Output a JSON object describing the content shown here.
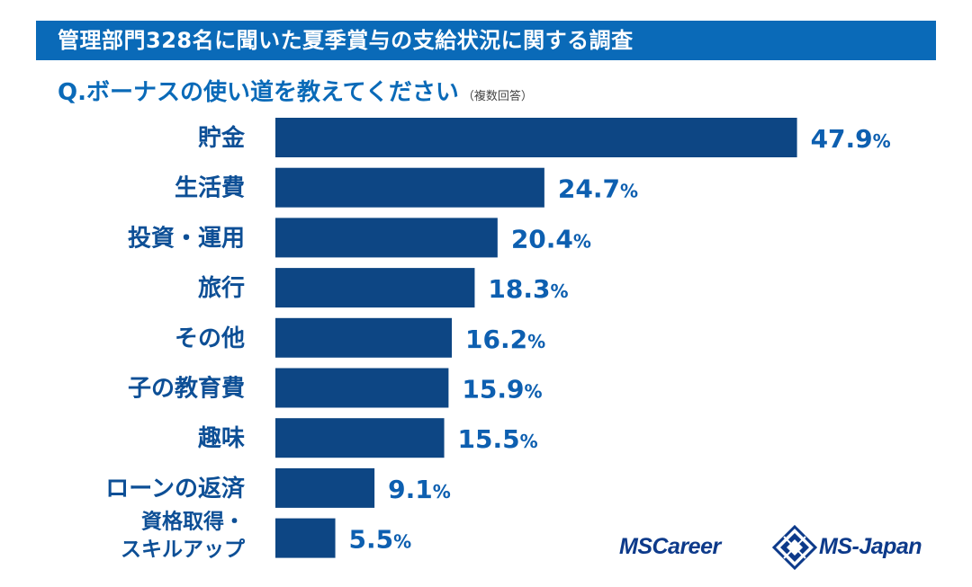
{
  "header": {
    "title": "管理部門328名に聞いた夏季賞与の支給状況に関する調査"
  },
  "question": {
    "text": "Q.ボーナスの使い道を教えてください",
    "note": "（複数回答）"
  },
  "chart_data": {
    "type": "bar",
    "orientation": "horizontal",
    "categories": [
      "貯金",
      "生活費",
      "投資・運用",
      "旅行",
      "その他",
      "子の教育費",
      "趣味",
      "ローンの返済",
      "資格取得・スキルアップ"
    ],
    "category_lines": [
      [
        "貯金"
      ],
      [
        "生活費"
      ],
      [
        "投資・運用"
      ],
      [
        "旅行"
      ],
      [
        "その他"
      ],
      [
        "子の教育費"
      ],
      [
        "趣味"
      ],
      [
        "ローンの返済"
      ],
      [
        "資格取得・",
        "スキルアップ"
      ]
    ],
    "values": [
      47.9,
      24.7,
      20.4,
      18.3,
      16.2,
      15.9,
      15.5,
      9.1,
      5.5
    ],
    "value_labels": [
      "47.9",
      "24.7",
      "20.4",
      "18.3",
      "16.2",
      "15.9",
      "15.5",
      "9.1",
      "5.5"
    ],
    "unit": "%",
    "bar_color": "#0d4684",
    "value_color": "#0d5fb0",
    "grid": false,
    "legend": "none"
  },
  "logos": {
    "mscareer": "MSCareer",
    "msjapan": "MS-Japan"
  },
  "colors": {
    "banner": "#0a6ab8",
    "accent": "#0a6ab8",
    "logo": "#0d3a8a"
  }
}
